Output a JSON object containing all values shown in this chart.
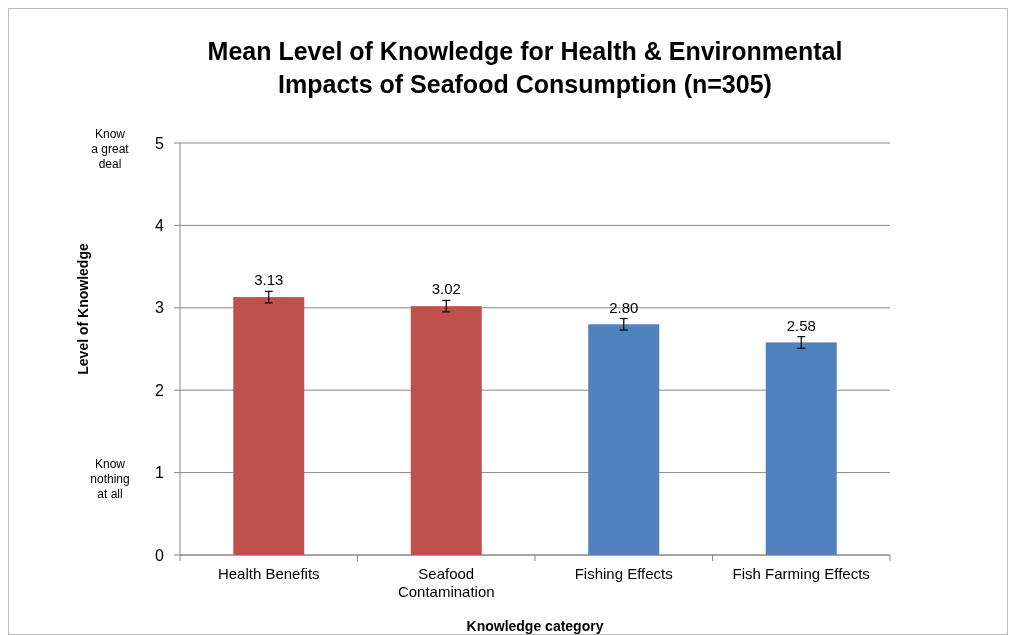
{
  "chart_data": {
    "type": "bar",
    "title": "Mean Level of Knowledge for Health & Environmental Impacts of Seafood Consumption (n=305)",
    "xlabel": "Knowledge category",
    "ylabel": "Level of Knowledge",
    "categories": [
      "Health Benefits",
      "Seafood Contamination",
      "Fishing Effects",
      "Fish Farming Effects"
    ],
    "values": [
      3.13,
      3.02,
      2.8,
      2.58
    ],
    "value_labels": [
      "3.13",
      "3.02",
      "2.80",
      "2.58"
    ],
    "colors": [
      "#c0504d",
      "#c0504d",
      "#4f81bd",
      "#4f81bd"
    ],
    "errors": [
      0.07,
      0.07,
      0.07,
      0.07
    ],
    "ylim": [
      0,
      5
    ],
    "yticks": [
      0,
      1,
      2,
      3,
      4,
      5
    ],
    "grid": "y",
    "annotations": [
      "Know a great deal",
      "Know nothing at all"
    ]
  }
}
